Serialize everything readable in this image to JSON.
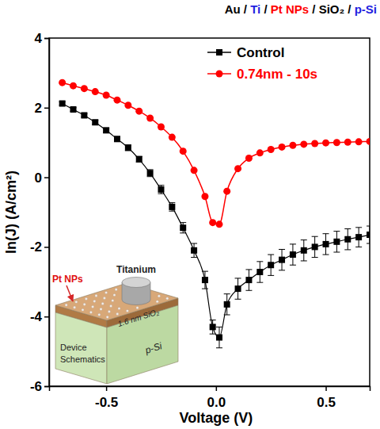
{
  "chart_data": {
    "type": "line",
    "title": "Au / Ti / Pt NPs / SiO₂ / p-Si",
    "x_label": "Voltage (V)",
    "y_label": "ln(J) (A/cm²)",
    "x": [
      -0.7,
      -0.65,
      -0.6,
      -0.55,
      -0.5,
      -0.45,
      -0.4,
      -0.35,
      -0.3,
      -0.25,
      -0.2,
      -0.15,
      -0.1,
      -0.05,
      -0.015,
      0.015,
      0.05,
      0.1,
      0.15,
      0.2,
      0.25,
      0.3,
      0.35,
      0.4,
      0.45,
      0.5,
      0.55,
      0.6,
      0.65,
      0.7
    ],
    "series": [
      {
        "name": "Control",
        "color": "#000000",
        "marker": "square",
        "line_style": "solid",
        "values": [
          2.12,
          1.95,
          1.78,
          1.58,
          1.35,
          1.1,
          0.85,
          0.52,
          0.12,
          -0.35,
          -0.85,
          -1.45,
          -2.1,
          -2.95,
          -4.3,
          -4.6,
          -3.65,
          -3.2,
          -2.95,
          -2.72,
          -2.52,
          -2.37,
          -2.22,
          -2.1,
          -2.0,
          -1.92,
          -1.85,
          -1.78,
          -1.72,
          -1.65
        ],
        "errors": [
          0.05,
          0.05,
          0.05,
          0.06,
          0.06,
          0.07,
          0.08,
          0.08,
          0.1,
          0.12,
          0.12,
          0.15,
          0.2,
          0.25,
          0.2,
          0.3,
          0.3,
          0.3,
          0.3,
          0.3,
          0.3,
          0.3,
          0.3,
          0.3,
          0.3,
          0.3,
          0.3,
          0.3,
          0.28,
          0.25
        ]
      },
      {
        "name": "0.74nm - 10s",
        "color": "#ff0000",
        "marker": "circle",
        "line_style": "solid",
        "values": [
          2.72,
          2.63,
          2.55,
          2.46,
          2.36,
          2.22,
          2.07,
          1.9,
          1.7,
          1.45,
          1.15,
          0.75,
          0.2,
          -0.55,
          -1.3,
          -1.35,
          -0.4,
          0.25,
          0.55,
          0.7,
          0.8,
          0.87,
          0.92,
          0.95,
          0.97,
          0.99,
          1.0,
          1.01,
          1.02,
          1.03
        ]
      }
    ],
    "xlim": [
      -0.76,
      0.7
    ],
    "ylim": [
      -6,
      4
    ],
    "xticks": [
      -0.5,
      {
        "value": 0,
        "label": "0.0"
      },
      0.5
    ],
    "yticks": [
      -6,
      -4,
      -2,
      0,
      2,
      4
    ],
    "legend": "upper right",
    "grid": false,
    "annotations": [
      "Titanium",
      "Pt NPs",
      "1.6 nm SiO₂",
      "p-Si",
      "Device Schematics"
    ]
  }
}
